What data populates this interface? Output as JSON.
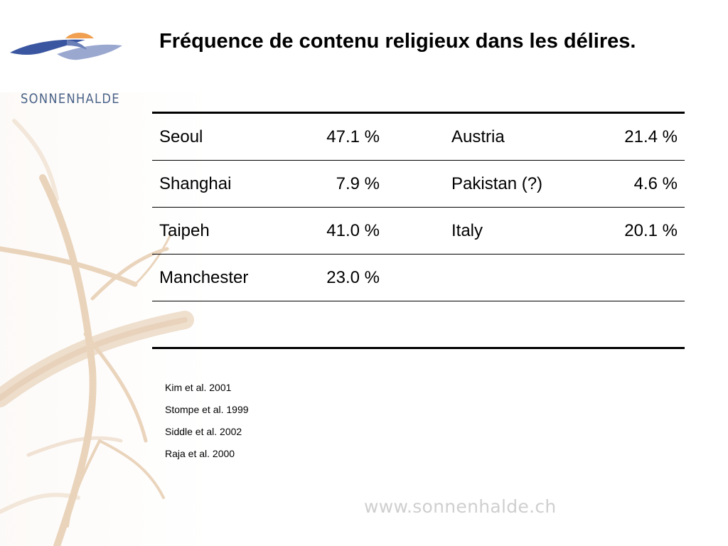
{
  "logo": {
    "text": "SONNENHALDE",
    "colors": {
      "sun": "#f0a050",
      "blue": "#3a56a0",
      "light_blue": "#9aa8d0"
    }
  },
  "title": "Fréquence de contenu religieux dans les délires.",
  "table": {
    "rows": [
      {
        "place1": "Seoul",
        "value1": "47.1 %",
        "place2": "Austria",
        "value2": "21.4 %"
      },
      {
        "place1": "Shanghai",
        "value1": "7.9 %",
        "place2": "Pakistan (?)",
        "value2": "4.6 %"
      },
      {
        "place1": "Taipeh",
        "value1": "41.0 %",
        "place2": "Italy",
        "value2": "20.1 %"
      },
      {
        "place1": "Manchester",
        "value1": "23.0 %",
        "place2": "",
        "value2": ""
      }
    ]
  },
  "references": [
    "Kim et al. 2001",
    "Stompe et al. 1999",
    "Siddle et al. 2002",
    "Raja et al. 2000"
  ],
  "footer": {
    "website": "www.sonnenhalde.ch"
  }
}
